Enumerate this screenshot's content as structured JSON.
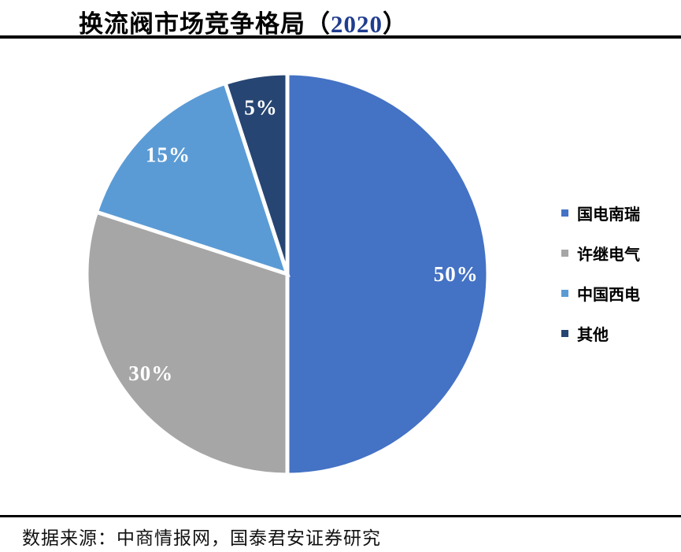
{
  "title": {
    "prefix": "换流阀市场竞争格局（",
    "year": "2020",
    "suffix": "）",
    "year_color": "#1F3C8F"
  },
  "source": {
    "text": "数据来源：中商情报网，国泰君安证券研究"
  },
  "chart_data": {
    "type": "pie",
    "title": "换流阀市场竞争格局（2020）",
    "direction": "clockwise",
    "start_angle_deg": 0,
    "legend_position": "right",
    "separator_color": "#ffffff",
    "series": [
      {
        "name": "国电南瑞",
        "value": 50,
        "label": "50%",
        "color": "#4472C4"
      },
      {
        "name": "许继电气",
        "value": 30,
        "label": "30%",
        "color": "#A6A6A6"
      },
      {
        "name": "中国西电",
        "value": 15,
        "label": "15%",
        "color": "#5B9BD5"
      },
      {
        "name": "其他",
        "value": 5,
        "label": "5%",
        "color": "#264573"
      }
    ]
  }
}
